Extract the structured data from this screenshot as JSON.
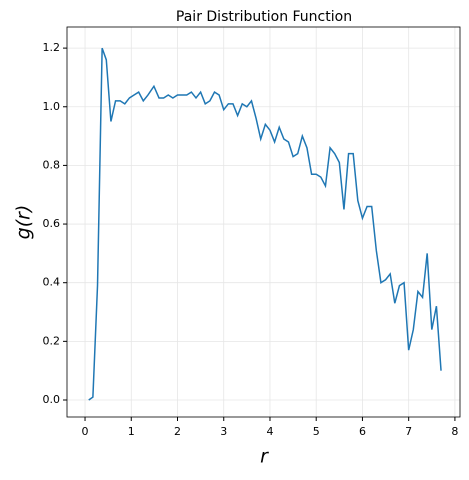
{
  "chart_data": {
    "type": "line",
    "title": "Pair Distribution Function",
    "x_label": "r",
    "y_label": "g(r)",
    "x": [
      0.08,
      0.17,
      0.27,
      0.37,
      0.46,
      0.56,
      0.66,
      0.76,
      0.86,
      0.96,
      1.06,
      1.16,
      1.26,
      1.36,
      1.49,
      1.6,
      1.7,
      1.8,
      1.9,
      2.0,
      2.1,
      2.2,
      2.3,
      2.4,
      2.5,
      2.6,
      2.7,
      2.8,
      2.9,
      3.0,
      3.1,
      3.2,
      3.3,
      3.4,
      3.5,
      3.6,
      3.7,
      3.8,
      3.9,
      4.0,
      4.1,
      4.2,
      4.3,
      4.4,
      4.5,
      4.6,
      4.7,
      4.8,
      4.9,
      5.0,
      5.1,
      5.2,
      5.3,
      5.4,
      5.5,
      5.6,
      5.7,
      5.8,
      5.9,
      6.0,
      6.1,
      6.2,
      6.3,
      6.4,
      6.5,
      6.6,
      6.7,
      6.8,
      6.9,
      7.0,
      7.1,
      7.2,
      7.3,
      7.4,
      7.5,
      7.6,
      7.7
    ],
    "series": [
      {
        "name": "g(r)",
        "color": "#1f77b4",
        "values": [
          0.0,
          0.01,
          0.39,
          1.2,
          1.16,
          0.95,
          1.02,
          1.02,
          1.01,
          1.03,
          1.04,
          1.05,
          1.02,
          1.04,
          1.07,
          1.03,
          1.03,
          1.04,
          1.03,
          1.04,
          1.04,
          1.04,
          1.05,
          1.03,
          1.05,
          1.01,
          1.02,
          1.05,
          1.04,
          0.99,
          1.01,
          1.01,
          0.97,
          1.01,
          1.0,
          1.02,
          0.96,
          0.89,
          0.94,
          0.92,
          0.88,
          0.93,
          0.89,
          0.88,
          0.83,
          0.84,
          0.9,
          0.86,
          0.77,
          0.77,
          0.76,
          0.73,
          0.86,
          0.84,
          0.81,
          0.65,
          0.84,
          0.84,
          0.68,
          0.62,
          0.66,
          0.66,
          0.51,
          0.4,
          0.41,
          0.43,
          0.33,
          0.39,
          0.4,
          0.17,
          0.24,
          0.37,
          0.35,
          0.5,
          0.24,
          0.32,
          0.1
        ]
      }
    ],
    "xlim": [
      -0.39,
      8.11
    ],
    "ylim": [
      -0.058,
      1.272
    ],
    "xticks": [
      0,
      1,
      2,
      3,
      4,
      5,
      6,
      7,
      8
    ],
    "yticks": [
      {
        "value": 0,
        "label": "0.0"
      },
      0.2,
      0.4,
      0.6,
      0.8,
      {
        "value": 1,
        "label": "1.0"
      },
      1.2
    ],
    "grid": true
  }
}
